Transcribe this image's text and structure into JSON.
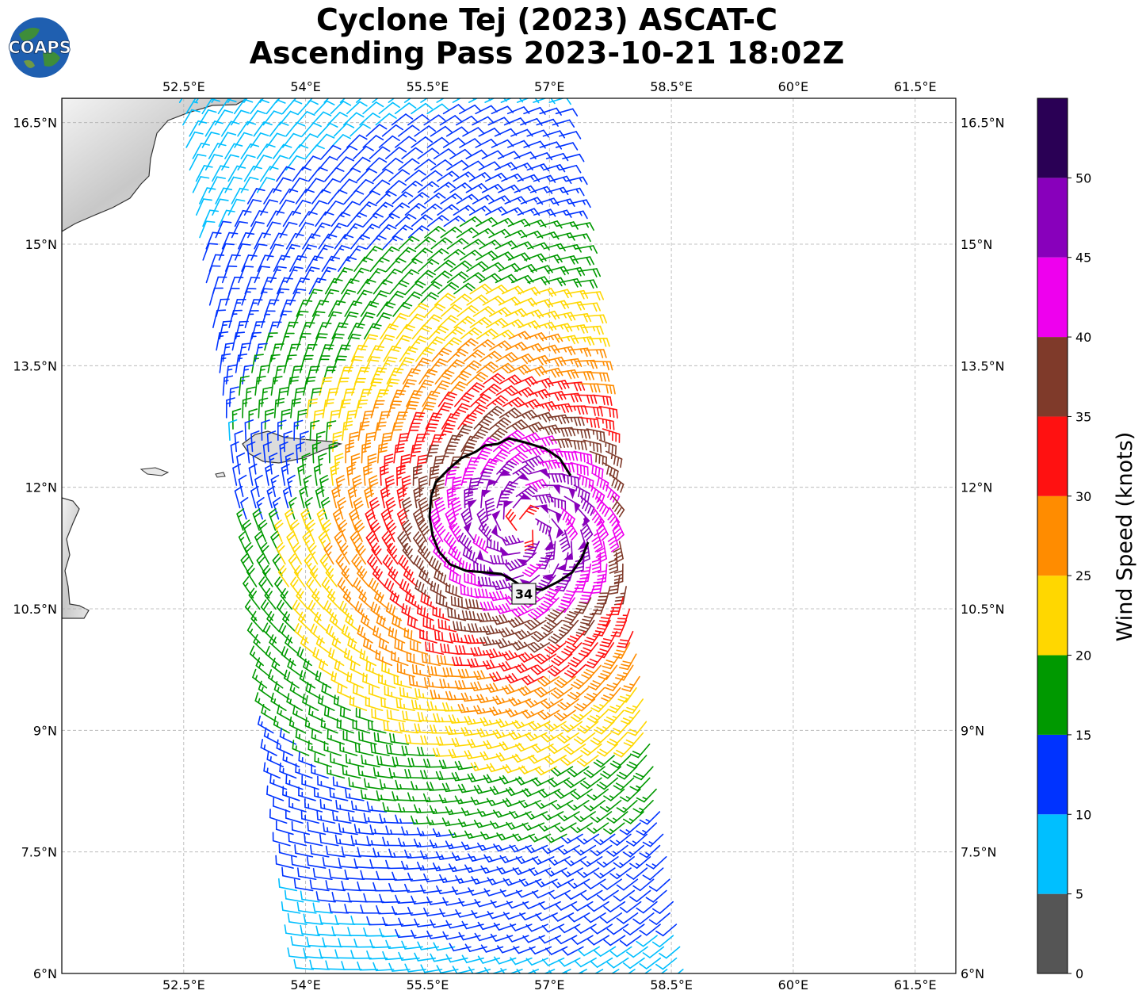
{
  "title": {
    "line1": "Cyclone Tej (2023) ASCAT-C",
    "line2": "Ascending Pass 2023-10-21 18:02Z"
  },
  "logo": {
    "text": "COAPS"
  },
  "map": {
    "lon_range": [
      51.0,
      62.0
    ],
    "lat_range": [
      6.0,
      16.8
    ],
    "lon_ticks": [
      "52.5°E",
      "54°E",
      "55.5°E",
      "57°E",
      "58.5°E",
      "60°E",
      "61.5°E"
    ],
    "lon_tick_values": [
      52.5,
      54.0,
      55.5,
      57.0,
      58.5,
      60.0,
      61.5
    ],
    "lat_ticks": [
      "6°N",
      "7.5°N",
      "9°N",
      "10.5°N",
      "12°N",
      "13.5°N",
      "15°N",
      "16.5°N"
    ],
    "lat_tick_values": [
      6.0,
      7.5,
      9.0,
      10.5,
      12.0,
      13.5,
      15.0,
      16.5
    ],
    "gridlines": true,
    "contour_label": "34",
    "cyclone_center": {
      "lon": 56.7,
      "lat": 11.5
    }
  },
  "colorbar": {
    "label": "Wind Speed (knots)",
    "ticks": [
      "0",
      "5",
      "10",
      "15",
      "20",
      "25",
      "30",
      "35",
      "40",
      "45",
      "50"
    ],
    "bins": [
      {
        "min": 0,
        "max": 5,
        "color": "#555555"
      },
      {
        "min": 5,
        "max": 10,
        "color": "#00bfff"
      },
      {
        "min": 10,
        "max": 15,
        "color": "#0033ff"
      },
      {
        "min": 15,
        "max": 20,
        "color": "#009900"
      },
      {
        "min": 20,
        "max": 25,
        "color": "#ffd700"
      },
      {
        "min": 25,
        "max": 30,
        "color": "#ff8c00"
      },
      {
        "min": 30,
        "max": 35,
        "color": "#ff1111"
      },
      {
        "min": 35,
        "max": 40,
        "color": "#7f3a2a"
      },
      {
        "min": 40,
        "max": 45,
        "color": "#ee00ee"
      },
      {
        "min": 45,
        "max": 50,
        "color": "#8800bb"
      },
      {
        "min": 50,
        "max": 55,
        "color": "#2a0055"
      }
    ]
  }
}
